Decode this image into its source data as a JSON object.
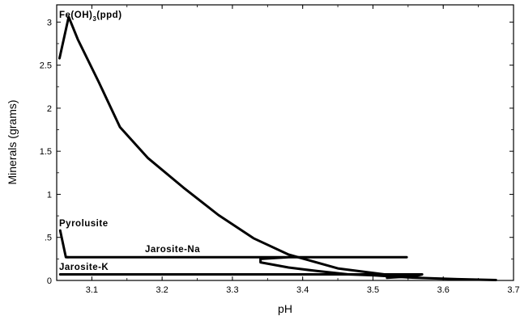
{
  "chart_data": {
    "type": "line",
    "xlabel": "pH",
    "ylabel": "Minerals (grams)",
    "xlim": [
      3.05,
      3.7
    ],
    "ylim": [
      0,
      3.2
    ],
    "x_ticks": [
      {
        "value": 3.1,
        "label": "3.1"
      },
      {
        "value": 3.2,
        "label": "3.2"
      },
      {
        "value": 3.3,
        "label": "3.3"
      },
      {
        "value": 3.4,
        "label": "3.4"
      },
      {
        "value": 3.5,
        "label": "3.5"
      },
      {
        "value": 3.6,
        "label": "3.6"
      },
      {
        "value": 3.7,
        "label": "3.7"
      }
    ],
    "y_ticks": [
      {
        "value": 0,
        "label": "0"
      },
      {
        "value": 0.5,
        "label": ".5"
      },
      {
        "value": 1,
        "label": "1"
      },
      {
        "value": 1.5,
        "label": "1.5"
      },
      {
        "value": 2,
        "label": "2"
      },
      {
        "value": 2.5,
        "label": "2.5"
      },
      {
        "value": 3,
        "label": "3"
      }
    ],
    "grid": false,
    "series": [
      {
        "name": "Fe(OH)3(ppd)",
        "points": [
          [
            3.054,
            2.58
          ],
          [
            3.067,
            3.06
          ],
          [
            3.08,
            2.8
          ],
          [
            3.11,
            2.3
          ],
          [
            3.14,
            1.78
          ],
          [
            3.18,
            1.42
          ],
          [
            3.23,
            1.08
          ],
          [
            3.28,
            0.76
          ],
          [
            3.33,
            0.49
          ],
          [
            3.38,
            0.3
          ],
          [
            3.45,
            0.14
          ],
          [
            3.55,
            0.035
          ],
          [
            3.62,
            0.015
          ],
          [
            3.675,
            0.005
          ]
        ]
      },
      {
        "name": "Pyrolusite",
        "points": [
          [
            3.055,
            0.58
          ],
          [
            3.063,
            0.27
          ],
          [
            3.066,
            0.27
          ]
        ]
      },
      {
        "name": "Jarosite-Na",
        "points": [
          [
            3.066,
            0.27
          ],
          [
            3.35,
            0.27
          ],
          [
            3.548,
            0.27
          ],
          [
            3.38,
            0.27
          ],
          [
            3.34,
            0.25
          ],
          [
            3.34,
            0.21
          ],
          [
            3.38,
            0.15
          ],
          [
            3.42,
            0.11
          ],
          [
            3.465,
            0.07
          ],
          [
            3.5,
            0.06
          ],
          [
            3.55,
            0.035
          ]
        ]
      },
      {
        "name": "Jarosite-K",
        "points": [
          [
            3.055,
            0.07
          ],
          [
            3.3,
            0.07
          ],
          [
            3.476,
            0.07
          ],
          [
            3.5,
            0.07
          ],
          [
            3.57,
            0.07
          ],
          [
            3.56,
            0.05
          ],
          [
            3.52,
            0.03
          ]
        ]
      }
    ],
    "annotations": [
      {
        "text": "Fe(OH)",
        "sub": "3",
        "tail": "(ppd)",
        "series": "Fe(OH)3(ppd)"
      },
      {
        "text": "Pyrolusite",
        "series": "Pyrolusite"
      },
      {
        "text": "Jarosite-Na",
        "series": "Jarosite-Na"
      },
      {
        "text": "Jarosite-K",
        "series": "Jarosite-K"
      }
    ]
  }
}
